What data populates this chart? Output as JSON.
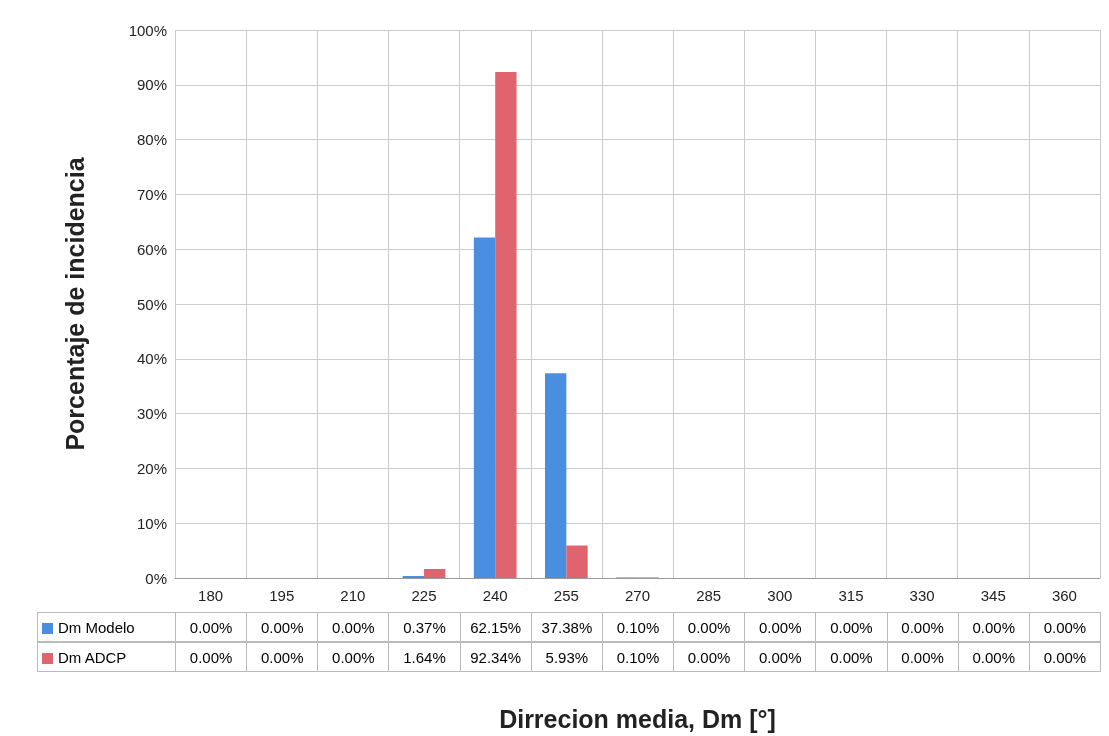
{
  "chart_data": {
    "type": "bar",
    "xlabel": "Dirrecion media, Dm [°]",
    "ylabel": "Porcentaje de incidencia",
    "categories": [
      "180",
      "195",
      "210",
      "225",
      "240",
      "255",
      "270",
      "285",
      "300",
      "315",
      "330",
      "345",
      "360"
    ],
    "series": [
      {
        "name": "Dm Modelo",
        "color": "#4a8ee0",
        "values": [
          0,
          0,
          0,
          0.37,
          62.15,
          37.38,
          0.1,
          0,
          0,
          0,
          0,
          0,
          0
        ],
        "value_labels": [
          "0.00%",
          "0.00%",
          "0.00%",
          "0.37%",
          "62.15%",
          "37.38%",
          "0.10%",
          "0.00%",
          "0.00%",
          "0.00%",
          "0.00%",
          "0.00%",
          "0.00%"
        ]
      },
      {
        "name": "Dm ADCP",
        "color": "#e0646e",
        "values": [
          0,
          0,
          0,
          1.64,
          92.34,
          5.93,
          0.1,
          0,
          0,
          0,
          0,
          0,
          0
        ],
        "value_labels": [
          "0.00%",
          "0.00%",
          "0.00%",
          "1.64%",
          "92.34%",
          "5.93%",
          "0.10%",
          "0.00%",
          "0.00%",
          "0.00%",
          "0.00%",
          "0.00%",
          "0.00%"
        ]
      }
    ],
    "ylim": [
      0,
      100
    ],
    "yticks": [
      {
        "value": 0,
        "label": "0%"
      },
      {
        "value": 10,
        "label": "10%"
      },
      {
        "value": 20,
        "label": "20%"
      },
      {
        "value": 30,
        "label": "30%"
      },
      {
        "value": 40,
        "label": "40%"
      },
      {
        "value": 50,
        "label": "50%"
      },
      {
        "value": 60,
        "label": "60%"
      },
      {
        "value": 70,
        "label": "70%"
      },
      {
        "value": 80,
        "label": "80%"
      },
      {
        "value": 90,
        "label": "90%"
      },
      {
        "value": 100,
        "label": "100%"
      }
    ],
    "grid": true,
    "legend": "bottom"
  }
}
